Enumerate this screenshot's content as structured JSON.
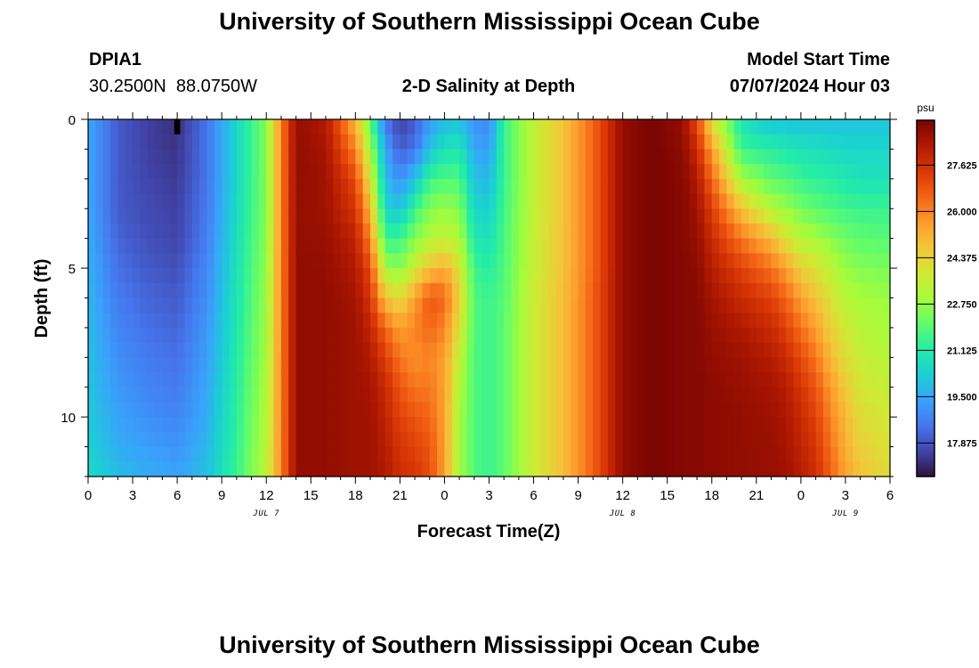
{
  "header": {
    "title": "University of Southern Mississippi Ocean Cube",
    "station_id": "DPIA1",
    "location": "30.2500N  88.0750W",
    "plot_title": "2-D Salinity at Depth",
    "model_start_label": "Model Start Time",
    "model_start_value": "07/07/2024 Hour 03"
  },
  "footer": {
    "title": "University of Southern Mississippi Ocean Cube"
  },
  "colors": {
    "colormap": [
      "#30123b",
      "#4145ab",
      "#4675ed",
      "#39a2fc",
      "#1bcfd4",
      "#24eca6",
      "#61fc6c",
      "#a4fc3b",
      "#d1e834",
      "#f3c63a",
      "#fe9b2d",
      "#f36315",
      "#d93806",
      "#b11901",
      "#7a0402"
    ],
    "missing_cell": "#000000"
  },
  "chart_data": {
    "type": "heatmap",
    "title": "2-D Salinity at Depth",
    "xlabel": "Forecast Time(Z)",
    "ylabel": "Depth (ft)",
    "x_hours_range": [
      0,
      54
    ],
    "x_tick_labels": [
      "0",
      "3",
      "6",
      "9",
      "12",
      "15",
      "18",
      "21",
      "0",
      "3",
      "6",
      "9",
      "12",
      "15",
      "18",
      "21",
      "0",
      "3",
      "6"
    ],
    "date_labels": [
      {
        "label": "JUL 7",
        "hour": 12
      },
      {
        "label": "JUL 8",
        "hour": 36
      },
      {
        "label": "JUL 9",
        "hour": 51
      }
    ],
    "y_ticks": [
      0,
      5,
      10
    ],
    "ylim": [
      0,
      12
    ],
    "colorbar": {
      "unit": "psu",
      "range": [
        16.7,
        29.2
      ],
      "tick_labels": [
        "17.875",
        "19.500",
        "21.125",
        "22.750",
        "24.375",
        "26.000",
        "27.625"
      ]
    },
    "salinity_psu": {
      "depth_ft": [
        0,
        1,
        2,
        3,
        4,
        5,
        6,
        7,
        8,
        9,
        10,
        11,
        12
      ],
      "time_hours": [
        0,
        2,
        4,
        6,
        8,
        10,
        12,
        13,
        14,
        16,
        18,
        19,
        20,
        21,
        22,
        23,
        24,
        25,
        26,
        27,
        28,
        30,
        32,
        34,
        36,
        38,
        40,
        41,
        42,
        44,
        46,
        47,
        48,
        49,
        50,
        51,
        52,
        54
      ],
      "values": [
        [
          19.5,
          18.0,
          17.5,
          17.2,
          18.5,
          20.5,
          22.5,
          26.0,
          28.8,
          28.3,
          25.0,
          22.0,
          18.5,
          17.5,
          18.0,
          19.2,
          19.8,
          20.0,
          19.0,
          18.8,
          21.5,
          23.5,
          24.8,
          26.5,
          28.8,
          29.2,
          28.8,
          27.0,
          24.0,
          20.8,
          20.0,
          20.0,
          20.0,
          20.0,
          20.0,
          20.0,
          20.0,
          20.0
        ],
        [
          19.5,
          18.0,
          17.5,
          17.3,
          18.5,
          20.5,
          22.5,
          26.0,
          28.8,
          28.5,
          26.0,
          23.0,
          19.5,
          18.0,
          18.5,
          20.0,
          20.8,
          21.0,
          19.5,
          19.3,
          21.5,
          23.5,
          24.8,
          26.5,
          28.8,
          29.2,
          28.9,
          27.8,
          25.5,
          21.5,
          21.2,
          21.0,
          20.8,
          20.7,
          20.6,
          20.5,
          20.5,
          20.5
        ],
        [
          19.5,
          18.0,
          17.6,
          17.4,
          18.5,
          20.5,
          22.5,
          26.0,
          28.8,
          28.6,
          27.0,
          24.0,
          20.0,
          19.0,
          20.0,
          21.5,
          21.8,
          21.8,
          20.0,
          19.8,
          21.5,
          23.5,
          24.8,
          26.5,
          28.8,
          29.2,
          29.0,
          28.3,
          26.5,
          23.0,
          22.0,
          21.8,
          21.5,
          21.3,
          21.2,
          21.0,
          20.8,
          20.8
        ],
        [
          19.5,
          18.0,
          17.7,
          17.5,
          18.6,
          20.6,
          22.5,
          26.0,
          28.8,
          28.6,
          27.5,
          25.0,
          20.5,
          20.0,
          21.5,
          22.5,
          22.8,
          22.5,
          20.5,
          20.3,
          21.6,
          23.5,
          24.8,
          26.5,
          28.8,
          29.2,
          29.0,
          28.6,
          27.3,
          24.8,
          23.2,
          22.8,
          22.3,
          22.0,
          21.8,
          21.6,
          21.5,
          21.5
        ],
        [
          19.6,
          18.2,
          17.8,
          17.6,
          18.7,
          20.7,
          22.6,
          26.0,
          28.8,
          28.7,
          28.0,
          26.0,
          21.5,
          21.5,
          22.5,
          23.2,
          23.5,
          23.2,
          21.0,
          20.8,
          21.7,
          23.6,
          24.8,
          26.5,
          28.8,
          29.2,
          29.0,
          28.8,
          27.8,
          26.2,
          25.0,
          24.0,
          23.3,
          23.0,
          22.6,
          22.2,
          22.0,
          21.9
        ],
        [
          19.7,
          18.4,
          18.0,
          17.8,
          18.9,
          20.8,
          22.7,
          26.0,
          28.8,
          28.8,
          28.3,
          27.0,
          23.0,
          22.5,
          23.8,
          24.8,
          25.3,
          24.0,
          21.5,
          21.2,
          21.8,
          23.6,
          24.8,
          26.5,
          28.8,
          29.2,
          29.0,
          28.9,
          28.2,
          27.2,
          26.3,
          25.5,
          24.5,
          24.0,
          23.5,
          22.8,
          22.5,
          22.4
        ],
        [
          19.8,
          18.6,
          18.2,
          18.0,
          19.0,
          20.9,
          22.8,
          26.0,
          28.8,
          28.8,
          28.5,
          27.5,
          24.8,
          24.2,
          25.5,
          26.8,
          26.5,
          24.5,
          21.8,
          21.5,
          21.9,
          23.7,
          24.9,
          26.6,
          28.8,
          29.2,
          29.0,
          29.0,
          28.5,
          27.8,
          27.2,
          26.5,
          25.5,
          24.8,
          24.0,
          23.3,
          23.0,
          22.8
        ],
        [
          19.9,
          18.8,
          18.4,
          18.2,
          19.2,
          21.0,
          22.9,
          26.0,
          28.8,
          28.8,
          28.6,
          28.0,
          26.5,
          25.5,
          26.0,
          26.5,
          26.0,
          24.0,
          21.8,
          21.5,
          22.0,
          23.7,
          24.9,
          26.6,
          28.8,
          29.2,
          29.0,
          29.0,
          28.7,
          28.3,
          27.8,
          27.2,
          26.3,
          25.5,
          24.5,
          23.8,
          23.3,
          23.0
        ],
        [
          20.0,
          19.0,
          18.6,
          18.4,
          19.3,
          21.1,
          23.0,
          26.0,
          28.8,
          28.8,
          28.6,
          28.3,
          27.3,
          26.2,
          25.8,
          26.0,
          25.5,
          23.5,
          21.8,
          21.5,
          22.0,
          23.7,
          24.9,
          26.6,
          28.8,
          29.2,
          29.0,
          29.0,
          28.8,
          28.6,
          28.2,
          27.8,
          27.0,
          26.2,
          25.0,
          24.2,
          23.6,
          23.3
        ],
        [
          20.1,
          19.2,
          18.8,
          18.6,
          19.5,
          21.2,
          23.1,
          26.0,
          28.8,
          28.8,
          28.6,
          28.5,
          27.8,
          26.8,
          26.2,
          26.2,
          25.5,
          23.2,
          21.8,
          21.5,
          22.0,
          23.7,
          24.9,
          26.6,
          28.8,
          29.2,
          29.0,
          29.0,
          28.9,
          28.7,
          28.5,
          28.2,
          27.5,
          26.8,
          25.6,
          24.6,
          23.9,
          23.6
        ],
        [
          20.2,
          19.4,
          19.0,
          18.8,
          19.6,
          21.3,
          23.2,
          26.0,
          28.8,
          28.8,
          28.6,
          28.6,
          28.0,
          27.2,
          26.8,
          26.5,
          25.5,
          23.0,
          21.8,
          21.5,
          22.0,
          23.7,
          24.9,
          26.6,
          28.8,
          29.2,
          29.0,
          29.0,
          28.9,
          28.8,
          28.6,
          28.4,
          27.8,
          27.2,
          26.0,
          25.0,
          24.2,
          23.8
        ],
        [
          20.4,
          19.6,
          19.3,
          19.1,
          19.8,
          21.4,
          23.3,
          26.0,
          28.8,
          28.8,
          28.6,
          28.6,
          28.2,
          27.5,
          27.2,
          26.8,
          25.5,
          23.0,
          21.8,
          21.5,
          22.0,
          23.7,
          24.9,
          26.6,
          28.8,
          29.2,
          29.0,
          29.0,
          28.9,
          28.8,
          28.7,
          28.5,
          28.0,
          27.5,
          26.3,
          25.2,
          24.5,
          24.0
        ],
        [
          20.6,
          19.9,
          19.6,
          19.4,
          20.0,
          21.5,
          23.4,
          26.0,
          28.8,
          28.8,
          28.6,
          28.6,
          28.3,
          27.7,
          27.5,
          27.0,
          25.5,
          23.0,
          21.8,
          21.5,
          22.0,
          23.7,
          24.9,
          26.6,
          28.8,
          29.2,
          29.0,
          29.0,
          28.9,
          28.8,
          28.7,
          28.6,
          28.2,
          27.7,
          26.6,
          25.5,
          24.8,
          24.2
        ]
      ],
      "missing_cells": [
        {
          "hour": 6,
          "depth_ft": 0
        }
      ]
    }
  }
}
